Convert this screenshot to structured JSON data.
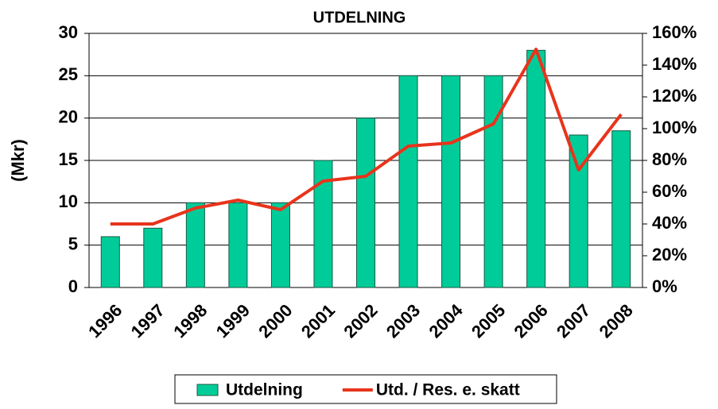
{
  "chart_data": {
    "type": "bar-line",
    "title": "UTDELNING",
    "y_label": "(Mkr)",
    "categories": [
      "1996",
      "1997",
      "1998",
      "1999",
      "2000",
      "2001",
      "2002",
      "2003",
      "2004",
      "2005",
      "2006",
      "2007",
      "2008"
    ],
    "series": [
      {
        "name": "Utdelning",
        "type": "bar",
        "color": "#00cc99",
        "values": [
          6,
          7,
          10,
          10,
          10,
          15,
          20,
          25,
          25,
          25,
          28,
          18,
          18.5
        ]
      },
      {
        "name": "Utd. / Res. e. skatt",
        "type": "line",
        "axis": "y2",
        "color": "#e8341c",
        "values": [
          40,
          40,
          50,
          55,
          49,
          67,
          70,
          89,
          91,
          103,
          150,
          74,
          109
        ]
      }
    ],
    "ylim": [
      0,
      30
    ],
    "yticks": [
      0,
      5,
      10,
      15,
      20,
      25,
      30
    ],
    "y2lim": [
      0,
      160
    ],
    "y2ticks": [
      {
        "value": 0,
        "label": "0%"
      },
      {
        "value": 20,
        "label": "20%"
      },
      {
        "value": 40,
        "label": "40%"
      },
      {
        "value": 60,
        "label": "60%"
      },
      {
        "value": 80,
        "label": "80%"
      },
      {
        "value": 100,
        "label": "100%"
      },
      {
        "value": 120,
        "label": "120%"
      },
      {
        "value": 140,
        "label": "140%"
      },
      {
        "value": 160,
        "label": "160%"
      }
    ],
    "grid": true,
    "legend": "bottom"
  }
}
